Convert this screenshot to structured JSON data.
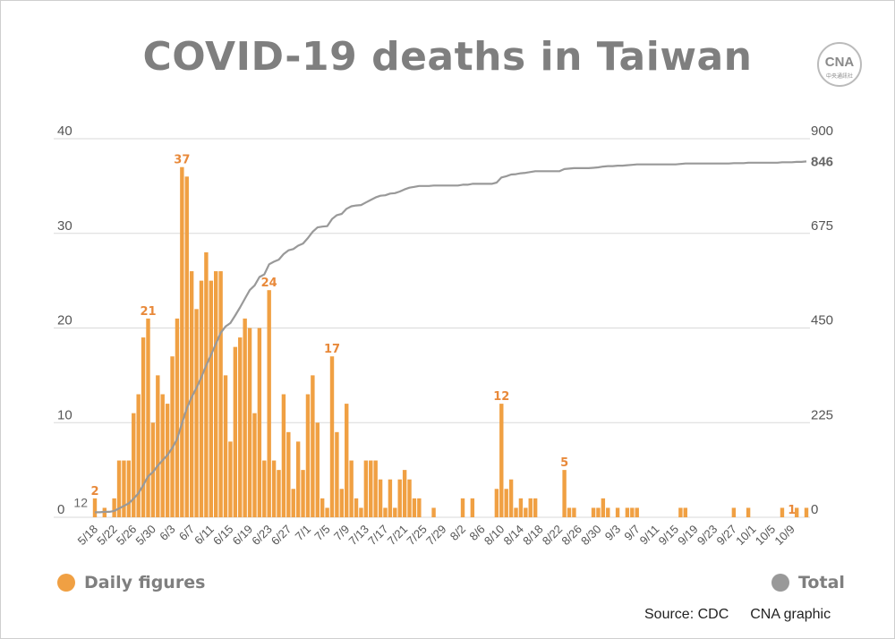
{
  "title": "COVID-19 deaths in Taiwan",
  "logo": {
    "text": "CNA",
    "subtext": "中央通訊社"
  },
  "source": "Source: CDC",
  "credit": "CNA graphic",
  "colors": {
    "daily": "#f0a043",
    "total": "#999999",
    "label": "#e8893a",
    "axis": "#555555"
  },
  "chart_data": {
    "type": "bar",
    "start_date": "5/18",
    "x_tick_labels": [
      "5/18",
      "5/22",
      "5/26",
      "5/30",
      "6/3",
      "6/7",
      "6/11",
      "6/15",
      "6/19",
      "6/23",
      "6/27",
      "7/1",
      "7/5",
      "7/9",
      "7/13",
      "7/17",
      "7/21",
      "7/25",
      "7/29",
      "8/2",
      "8/6",
      "8/10",
      "8/14",
      "8/18",
      "8/22",
      "8/26",
      "8/30",
      "9/3",
      "9/7",
      "9/11",
      "9/15",
      "9/19",
      "9/23",
      "9/27",
      "10/1",
      "10/5",
      "10/9"
    ],
    "ylim_left": [
      0,
      40
    ],
    "yticks_left": [
      0,
      10,
      20,
      30,
      40
    ],
    "ylim_right": [
      0,
      900
    ],
    "yticks_right": [
      0,
      225,
      450,
      675,
      900
    ],
    "grid": true,
    "series": [
      {
        "name": "Daily figures",
        "axis": "left",
        "values": [
          2,
          0,
          1,
          0,
          2,
          6,
          6,
          6,
          11,
          13,
          19,
          21,
          10,
          15,
          13,
          12,
          17,
          21,
          37,
          36,
          26,
          22,
          25,
          28,
          25,
          26,
          26,
          15,
          8,
          18,
          19,
          21,
          20,
          11,
          20,
          6,
          24,
          6,
          5,
          13,
          9,
          3,
          8,
          5,
          13,
          15,
          10,
          2,
          1,
          17,
          9,
          3,
          12,
          6,
          2,
          1,
          6,
          6,
          6,
          4,
          1,
          4,
          1,
          4,
          5,
          4,
          2,
          2,
          0,
          0,
          1,
          0,
          0,
          0,
          0,
          0,
          2,
          0,
          2,
          0,
          0,
          0,
          0,
          3,
          12,
          3,
          4,
          1,
          2,
          1,
          2,
          2,
          0,
          0,
          0,
          0,
          0,
          5,
          1,
          1,
          0,
          0,
          0,
          1,
          1,
          2,
          1,
          0,
          1,
          0,
          1,
          1,
          1,
          0,
          0,
          0,
          0,
          0,
          0,
          0,
          0,
          1,
          1,
          0,
          0,
          0,
          0,
          0,
          0,
          0,
          0,
          0,
          1,
          0,
          0,
          1,
          0,
          0,
          0,
          0,
          0,
          0,
          1,
          0,
          0,
          1,
          0,
          1
        ]
      },
      {
        "name": "Total",
        "axis": "right",
        "start_value": 12,
        "end_value": 846
      }
    ],
    "bar_labels": [
      {
        "day": 0,
        "text": "2"
      },
      {
        "day": 11,
        "text": "21"
      },
      {
        "day": 18,
        "text": "37"
      },
      {
        "day": 36,
        "text": "24"
      },
      {
        "day": 49,
        "text": "17"
      },
      {
        "day": 84,
        "text": "12"
      },
      {
        "day": 97,
        "text": "5"
      },
      {
        "day": 144,
        "text": "1"
      }
    ],
    "total_labels": {
      "start": "12",
      "end": "846"
    },
    "legend": {
      "daily": "Daily figures",
      "total": "Total",
      "placement": "bottom"
    }
  }
}
